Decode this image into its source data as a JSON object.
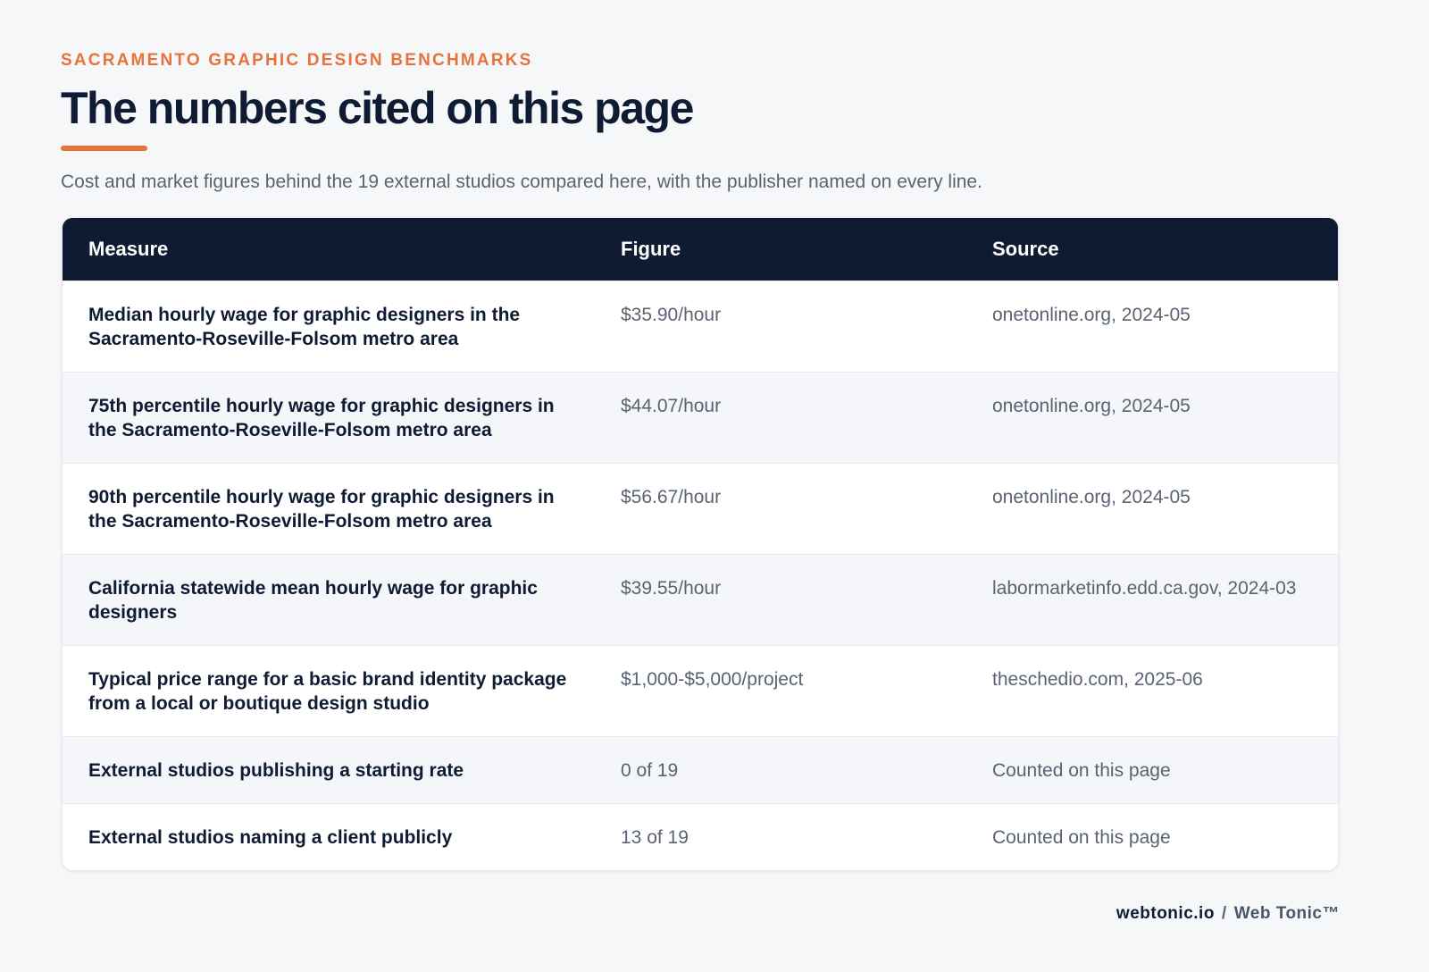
{
  "header": {
    "eyebrow": "SACRAMENTO GRAPHIC DESIGN BENCHMARKS",
    "title": "The numbers cited on this page",
    "subtitle": "Cost and market figures behind the 19 external studios compared here, with the publisher named on every line."
  },
  "table": {
    "columns": [
      "Measure",
      "Figure",
      "Source"
    ],
    "rows": [
      [
        "Median hourly wage for graphic designers in the Sacramento-Roseville-Folsom metro area",
        "$35.90/hour",
        "onetonline.org, 2024-05"
      ],
      [
        "75th percentile hourly wage for graphic designers in the Sacramento-Roseville-Folsom metro area",
        "$44.07/hour",
        "onetonline.org, 2024-05"
      ],
      [
        "90th percentile hourly wage for graphic designers in the Sacramento-Roseville-Folsom metro area",
        "$56.67/hour",
        "onetonline.org, 2024-05"
      ],
      [
        "California statewide mean hourly wage for graphic designers",
        "$39.55/hour",
        "labormarketinfo.edd.ca.gov, 2024-03"
      ],
      [
        "Typical price range for a basic brand identity package from a local or boutique design studio",
        "$1,000-$5,000/project",
        "theschedio.com, 2025-06"
      ],
      [
        "External studios publishing a starting rate",
        "0 of 19",
        "Counted on this page"
      ],
      [
        "External studios naming a client publicly",
        "13 of 19",
        "Counted on this page"
      ]
    ]
  },
  "footer": {
    "site": "webtonic.io",
    "separator": "/",
    "brand": "Web Tonic™"
  }
}
